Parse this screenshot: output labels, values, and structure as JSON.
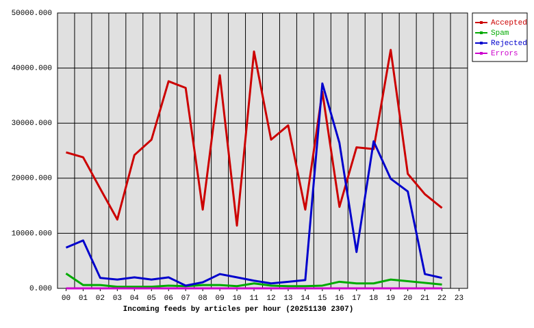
{
  "chart_data": {
    "type": "line",
    "xlabel": "Incoming feeds by articles per hour (20251130 2307)",
    "categories": [
      "00",
      "01",
      "02",
      "03",
      "04",
      "05",
      "06",
      "07",
      "08",
      "09",
      "10",
      "11",
      "12",
      "13",
      "14",
      "15",
      "16",
      "17",
      "18",
      "19",
      "20",
      "21",
      "22",
      "23"
    ],
    "series": [
      {
        "name": "Accepted",
        "color": "#cc0000",
        "values": [
          24700,
          23800,
          18100,
          12500,
          24200,
          27000,
          37600,
          36400,
          14300,
          38700,
          11400,
          43000,
          27000,
          29600,
          14300,
          35700,
          14800,
          25600,
          25300,
          43300,
          20800,
          17100,
          14600,
          null
        ]
      },
      {
        "name": "Spam",
        "color": "#00aa00",
        "values": [
          2700,
          600,
          600,
          300,
          300,
          300,
          500,
          400,
          600,
          600,
          400,
          900,
          500,
          400,
          400,
          500,
          1200,
          900,
          900,
          1600,
          1300,
          1000,
          700,
          null
        ]
      },
      {
        "name": "Rejected",
        "color": "#0000cc",
        "values": [
          7400,
          8700,
          1900,
          1600,
          2000,
          1600,
          2000,
          500,
          1100,
          2600,
          2000,
          1400,
          900,
          1200,
          1500,
          37200,
          26400,
          6600,
          26700,
          19900,
          17600,
          2600,
          1900,
          null
        ]
      },
      {
        "name": "Errors",
        "color": "#cc00cc",
        "values": [
          0,
          0,
          0,
          0,
          0,
          0,
          0,
          0,
          0,
          0,
          0,
          0,
          0,
          0,
          0,
          0,
          0,
          0,
          0,
          0,
          0,
          0,
          0,
          null
        ]
      }
    ],
    "ylim": [
      0,
      50000
    ],
    "yticks": [
      {
        "value": 0,
        "label": "0.000"
      },
      {
        "value": 10000,
        "label": "10000.000"
      },
      {
        "value": 20000,
        "label": "20000.000"
      },
      {
        "value": 30000,
        "label": "30000.000"
      },
      {
        "value": 40000,
        "label": "40000.000"
      },
      {
        "value": 50000,
        "label": "50000.000"
      }
    ],
    "grid": true,
    "legend": "right"
  }
}
